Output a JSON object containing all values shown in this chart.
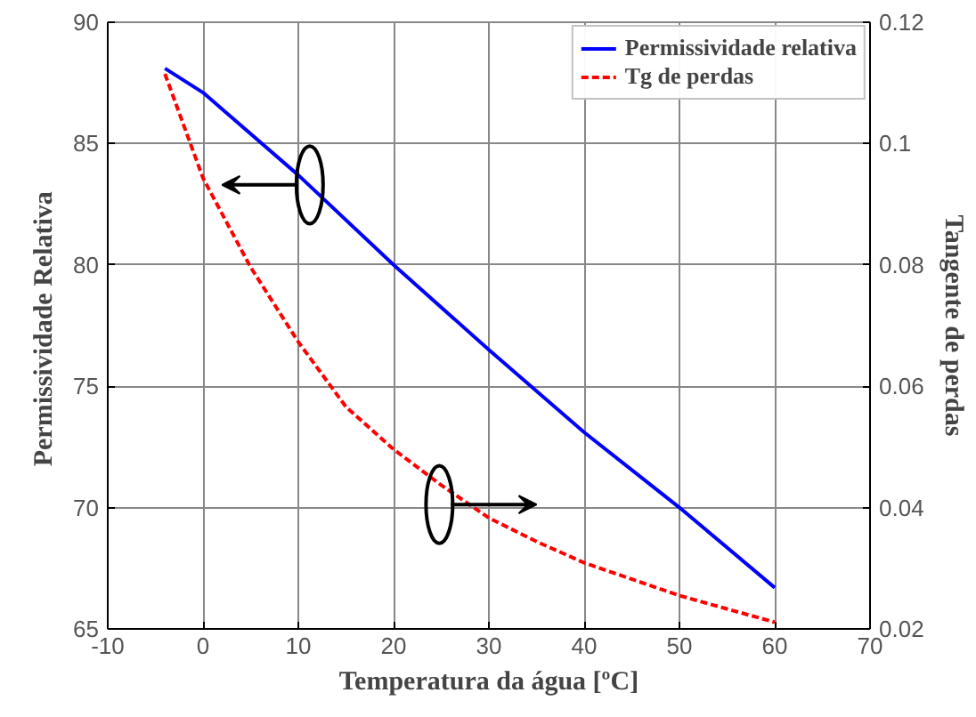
{
  "chart_data": {
    "type": "line",
    "xlabel": "Temperatura da água [ºC]",
    "ylabel": "Permissividade  Relativa",
    "y2label": "Tangente de perdas",
    "xlim": [
      -10,
      70
    ],
    "xticks": [
      -10,
      0,
      10,
      20,
      30,
      40,
      50,
      60,
      70
    ],
    "ylim": [
      65,
      90
    ],
    "yticks": [
      65,
      70,
      75,
      80,
      85,
      90
    ],
    "y2lim": [
      0.02,
      0.12
    ],
    "y2ticks": [
      0.02,
      0.04,
      0.06,
      0.08,
      0.1,
      0.12
    ],
    "grid": true,
    "legend": "top right",
    "series": [
      {
        "name": "Permissividade relativa",
        "color": "#0000ff",
        "line_style": "solid",
        "x": [
          -4,
          0,
          10,
          20,
          30,
          40,
          50,
          60
        ],
        "values": [
          88.1,
          87.1,
          83.7,
          80.0,
          76.5,
          73.1,
          70.0,
          66.7
        ]
      },
      {
        "name": "Tg de perdas",
        "color": "#ff0000",
        "line_style": "dashed",
        "axis": "y2",
        "x": [
          -4,
          0,
          5,
          10,
          15,
          20,
          25,
          30,
          35,
          40,
          50,
          60
        ],
        "values": [
          0.1115,
          0.0943,
          0.0796,
          0.0673,
          0.0566,
          0.0496,
          0.0437,
          0.0383,
          0.0344,
          0.0309,
          0.0255,
          0.0211
        ]
      }
    ]
  }
}
